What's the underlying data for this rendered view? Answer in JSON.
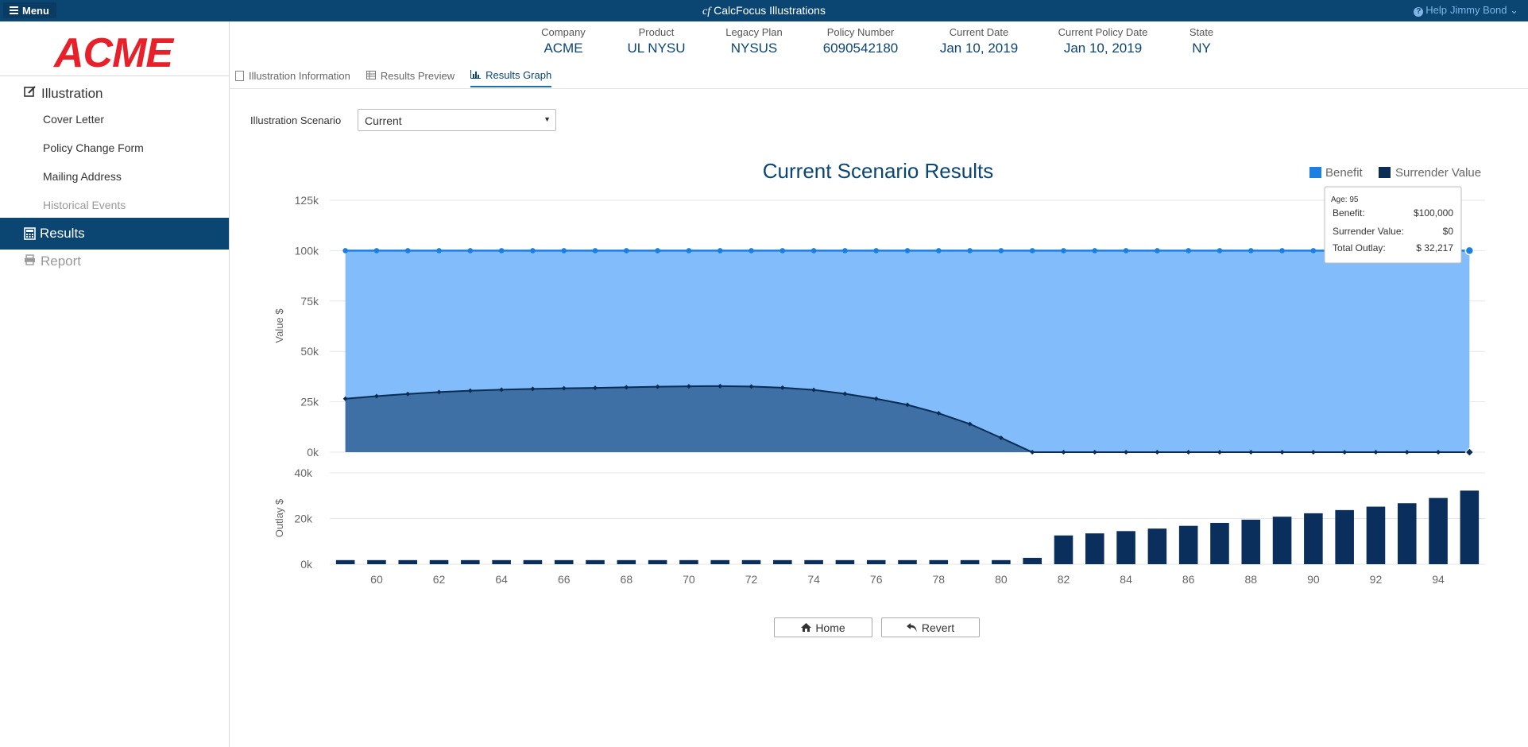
{
  "topbar": {
    "menu_label": "Menu",
    "app_logo": "cf",
    "app_title": "CalcFocus Illustrations",
    "help_label": "Help",
    "user_name": "Jimmy Bond"
  },
  "brand": {
    "logo_text": "ACME",
    "logo_color": "#e8202a"
  },
  "sidebar": {
    "illustration_label": "Illustration",
    "items": [
      "Cover Letter",
      "Policy Change Form",
      "Mailing Address",
      "Historical Events"
    ],
    "results_label": "Results",
    "report_label": "Report"
  },
  "policy_info": [
    {
      "label": "Company",
      "value": "ACME"
    },
    {
      "label": "Product",
      "value": "UL NYSU"
    },
    {
      "label": "Legacy Plan",
      "value": "NYSUS"
    },
    {
      "label": "Policy Number",
      "value": "6090542180"
    },
    {
      "label": "Current Date",
      "value": "Jan 10, 2019"
    },
    {
      "label": "Current Policy Date",
      "value": "Jan 10, 2019"
    },
    {
      "label": "State",
      "value": "NY"
    }
  ],
  "tabs": [
    "Illustration Information",
    "Results Preview",
    "Results Graph"
  ],
  "active_tab": "Results Graph",
  "scenario": {
    "label": "Illustration Scenario",
    "value": "Current"
  },
  "chart_data": {
    "type": "area",
    "title": "Current Scenario Results",
    "legend": [
      "Benefit",
      "Surrender Value"
    ],
    "legend_placement": "top-right",
    "colors": {
      "benefit": "#82bcfb",
      "benefit_line": "#1a7fe0",
      "surrender": "#3e6fa5",
      "surrender_line": "#0a2d55",
      "outlay": "#0b2f5c"
    },
    "value_axis": {
      "label": "Value $",
      "ticks": [
        "0k",
        "25k",
        "50k",
        "75k",
        "100k",
        "125k"
      ],
      "ylim": [
        0,
        125000
      ]
    },
    "outlay_axis": {
      "label": "Outlay $",
      "ticks": [
        "0k",
        "20k",
        "40k"
      ],
      "ylim": [
        0,
        40000
      ]
    },
    "x_ticks": [
      "60",
      "62",
      "64",
      "66",
      "68",
      "70",
      "72",
      "74",
      "76",
      "78",
      "80",
      "82",
      "84",
      "86",
      "88",
      "90",
      "92",
      "94"
    ],
    "ages": [
      59,
      60,
      61,
      62,
      63,
      64,
      65,
      66,
      67,
      68,
      69,
      70,
      71,
      72,
      73,
      74,
      75,
      76,
      77,
      78,
      79,
      80,
      81,
      82,
      83,
      84,
      85,
      86,
      87,
      88,
      89,
      90,
      91,
      92,
      93,
      94,
      95
    ],
    "series": [
      {
        "name": "Benefit",
        "values": [
          100000,
          100000,
          100000,
          100000,
          100000,
          100000,
          100000,
          100000,
          100000,
          100000,
          100000,
          100000,
          100000,
          100000,
          100000,
          100000,
          100000,
          100000,
          100000,
          100000,
          100000,
          100000,
          100000,
          100000,
          100000,
          100000,
          100000,
          100000,
          100000,
          100000,
          100000,
          100000,
          100000,
          100000,
          100000,
          100000,
          100000
        ]
      },
      {
        "name": "Surrender Value",
        "values": [
          26500,
          27800,
          28900,
          29800,
          30500,
          31000,
          31400,
          31700,
          31900,
          32200,
          32500,
          32700,
          32800,
          32600,
          32000,
          30900,
          29000,
          26500,
          23500,
          19300,
          14000,
          7100,
          0,
          0,
          0,
          0,
          0,
          0,
          0,
          0,
          0,
          0,
          0,
          0,
          0,
          0,
          0
        ]
      },
      {
        "name": "Total Outlay",
        "values": [
          1800,
          1800,
          1800,
          1800,
          1800,
          1800,
          1800,
          1800,
          1800,
          1800,
          1800,
          1800,
          1800,
          1800,
          1800,
          1800,
          1800,
          1800,
          1800,
          1800,
          1800,
          1800,
          2800,
          12600,
          13500,
          14500,
          15600,
          16800,
          18100,
          19500,
          20800,
          22300,
          23700,
          25200,
          26700,
          29000,
          32217
        ]
      }
    ]
  },
  "tooltip": {
    "age_label": "Age: 95",
    "rows": [
      {
        "label": "Benefit:",
        "value": "$100,000"
      },
      {
        "label": "Surrender Value:",
        "value": "$0"
      },
      {
        "label": "Total Outlay:",
        "value": "$ 32,217"
      }
    ]
  },
  "buttons": {
    "home_label": "Home",
    "revert_label": "Revert"
  }
}
